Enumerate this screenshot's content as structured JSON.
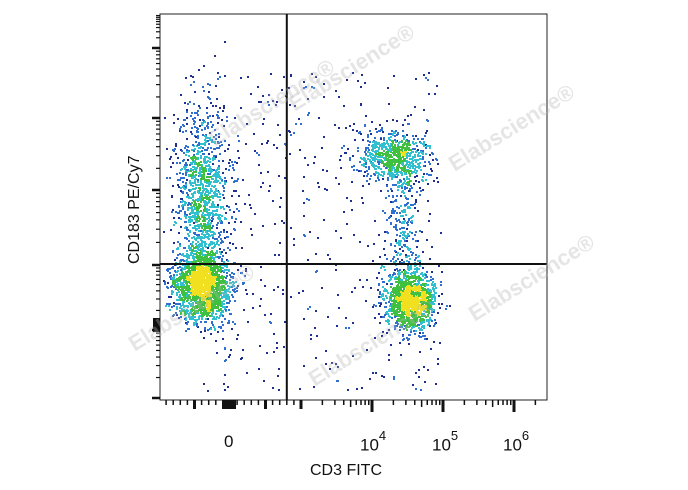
{
  "chart_data": {
    "type": "scatter",
    "subtype": "flow-cytometry-density-dot-plot",
    "xlabel": "CD3 FITC",
    "ylabel": "CD183 PE/Cy7",
    "x_scale": "biexponential",
    "x_tick_labels": [
      {
        "base": "0",
        "exp": "",
        "value": 0
      },
      {
        "base": "10",
        "exp": "4",
        "value": 10000
      },
      {
        "base": "10",
        "exp": "5",
        "value": 100000
      },
      {
        "base": "10",
        "exp": "6",
        "value": 1000000
      }
    ],
    "y_tick_labels": [],
    "quadrant_gate": {
      "x": 800,
      "y": "CD183 low/high boundary"
    },
    "populations": [
      {
        "name": "",
        "quadrant": "lower-left",
        "x_center": 300,
        "density": "high"
      },
      {
        "name": "",
        "quadrant": "upper-left",
        "x_center": 300,
        "density": "medium"
      },
      {
        "name": "",
        "quadrant": "lower-right",
        "x_center": 34000,
        "density": "very high"
      },
      {
        "name": "",
        "quadrant": "upper-right",
        "x_center": 20000,
        "density": "medium"
      }
    ],
    "color_scale": [
      "#1f2f8f",
      "#2f6fd0",
      "#30c0d0",
      "#40c040",
      "#f0e020",
      "#f08000",
      "#e01010"
    ],
    "grid": false,
    "legend": "none"
  },
  "watermark": "Elabscience®"
}
